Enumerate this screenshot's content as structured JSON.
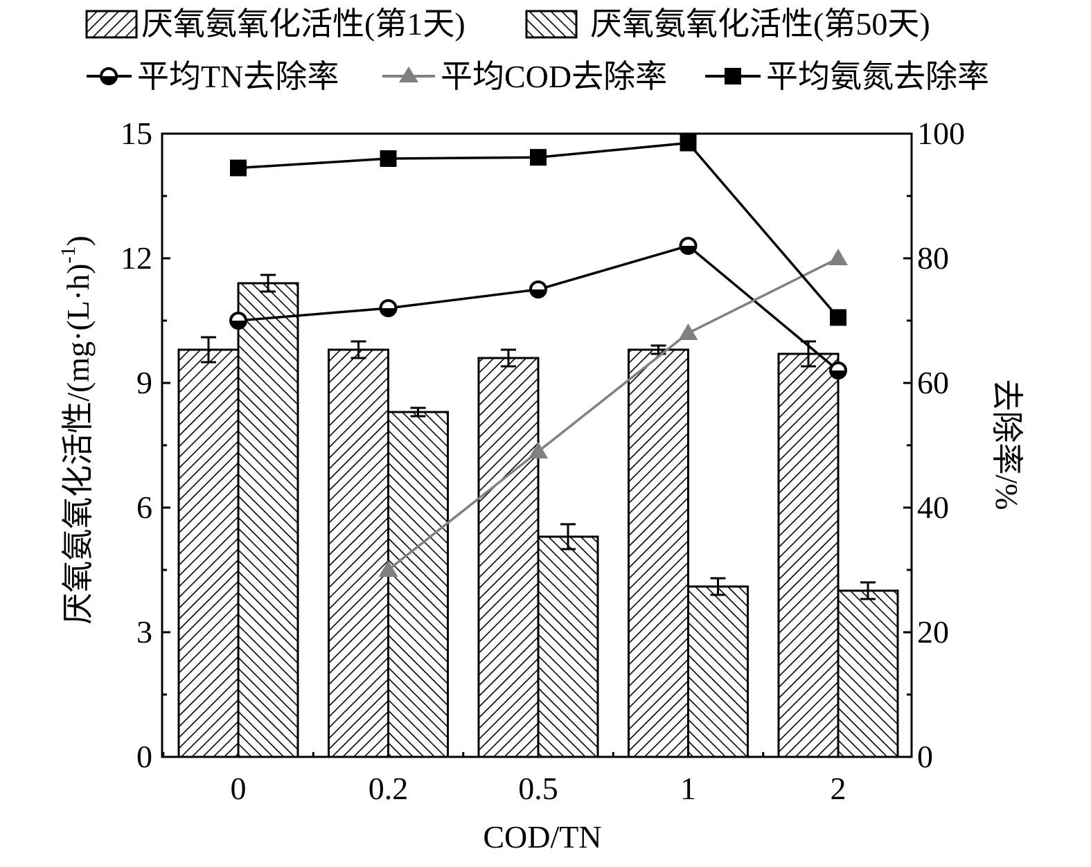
{
  "chart_data": {
    "type": "bar",
    "xlabel": "COD/TN",
    "ylabel_left": "厌氧氨氧化活性/(mg·(L·h)⁻¹)",
    "ylabel_left_parts": [
      "厌氧氨氧化活性/(mg·(L·h)",
      "-1",
      ")"
    ],
    "ylabel_right": "去除率/%",
    "categories": [
      "0",
      "0.2",
      "0.5",
      "1",
      "2"
    ],
    "ylim_left": [
      0,
      15
    ],
    "yticks_left": [
      "0",
      "3",
      "6",
      "9",
      "12",
      "15"
    ],
    "ylim_right": [
      0,
      100
    ],
    "yticks_right": [
      "0",
      "20",
      "40",
      "60",
      "80",
      "100"
    ],
    "bar_series": [
      {
        "name": "厌氧氨氧化活性(第1天)",
        "values": [
          9.8,
          9.8,
          9.6,
          9.8,
          9.7
        ],
        "errors": [
          0.3,
          0.2,
          0.2,
          0.1,
          0.3
        ],
        "pattern": "forward-hatch"
      },
      {
        "name": "厌氧氨氧化活性(第50天)",
        "values": [
          11.4,
          8.3,
          5.3,
          4.1,
          4.0
        ],
        "errors": [
          0.2,
          0.1,
          0.3,
          0.2,
          0.2
        ],
        "pattern": "back-hatch"
      }
    ],
    "line_series": [
      {
        "name": "平均TN去除率",
        "axis": "right",
        "values": [
          70,
          72,
          75,
          82,
          62
        ],
        "marker": "half-circle",
        "color": "#000000"
      },
      {
        "name": "平均COD去除率",
        "axis": "right",
        "values": [
          null,
          30,
          49,
          68,
          80
        ],
        "marker": "triangle",
        "color": "#808080"
      },
      {
        "name": "平均氨氮去除率",
        "axis": "right",
        "values": [
          94.5,
          96,
          96.2,
          98.5,
          70.5
        ],
        "marker": "square",
        "color": "#000000"
      }
    ],
    "legend_placement": "top",
    "grid": false
  }
}
